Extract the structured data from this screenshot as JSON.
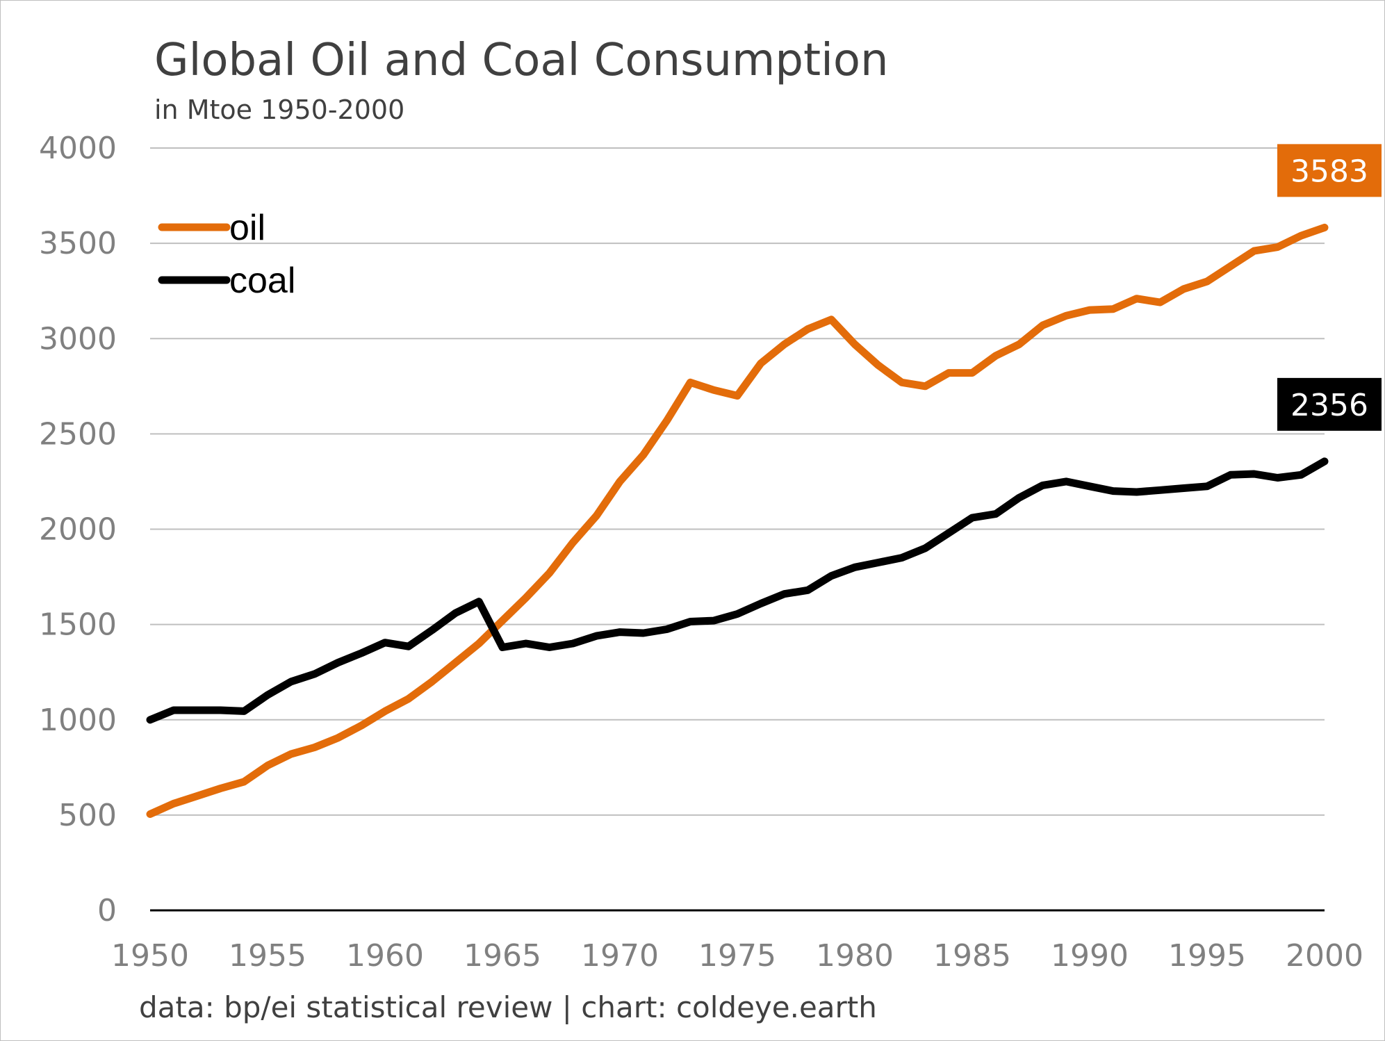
{
  "chart_data": {
    "type": "line",
    "title": "Global Oil and Coal Consumption",
    "subtitle": "in Mtoe 1950-2000",
    "source": "data: bp/ei statistical review | chart: coldeye.earth",
    "xlim": [
      1950,
      2000
    ],
    "ylim": [
      0,
      4000
    ],
    "x_ticks": [
      1950,
      1955,
      1960,
      1965,
      1970,
      1975,
      1980,
      1985,
      1990,
      1995,
      2000
    ],
    "y_ticks": [
      0,
      500,
      1000,
      1500,
      2000,
      2500,
      3000,
      3500,
      4000
    ],
    "grid": true,
    "legend_position": "upper-left",
    "x": [
      1950,
      1951,
      1952,
      1953,
      1954,
      1955,
      1956,
      1957,
      1958,
      1959,
      1960,
      1961,
      1962,
      1963,
      1964,
      1965,
      1966,
      1967,
      1968,
      1969,
      1970,
      1971,
      1972,
      1973,
      1974,
      1975,
      1976,
      1977,
      1978,
      1979,
      1980,
      1981,
      1982,
      1983,
      1984,
      1985,
      1986,
      1987,
      1988,
      1989,
      1990,
      1991,
      1992,
      1993,
      1994,
      1995,
      1996,
      1997,
      1998,
      1999,
      2000
    ],
    "series": [
      {
        "name": "oil",
        "color": "#E36C0A",
        "end_label": "3583",
        "values": [
          505,
          560,
          600,
          640,
          675,
          760,
          820,
          855,
          905,
          970,
          1045,
          1110,
          1200,
          1300,
          1400,
          1520,
          1640,
          1770,
          1930,
          2070,
          2250,
          2390,
          2570,
          2770,
          2730,
          2700,
          2870,
          2970,
          3050,
          3100,
          2970,
          2860,
          2770,
          2750,
          2820,
          2820,
          2910,
          2970,
          3070,
          3120,
          3150,
          3155,
          3210,
          3190,
          3260,
          3300,
          3380,
          3460,
          3480,
          3540,
          3583
        ]
      },
      {
        "name": "coal",
        "color": "#000000",
        "end_label": "2356",
        "values": [
          1000,
          1050,
          1050,
          1050,
          1045,
          1130,
          1200,
          1240,
          1300,
          1350,
          1405,
          1385,
          1470,
          1560,
          1620,
          1380,
          1400,
          1380,
          1400,
          1440,
          1460,
          1455,
          1475,
          1515,
          1520,
          1555,
          1610,
          1660,
          1680,
          1755,
          1800,
          1825,
          1850,
          1900,
          1980,
          2060,
          2080,
          2165,
          2230,
          2250,
          2225,
          2200,
          2195,
          2205,
          2215,
          2225,
          2285,
          2290,
          2270,
          2285,
          2356
        ]
      }
    ]
  }
}
